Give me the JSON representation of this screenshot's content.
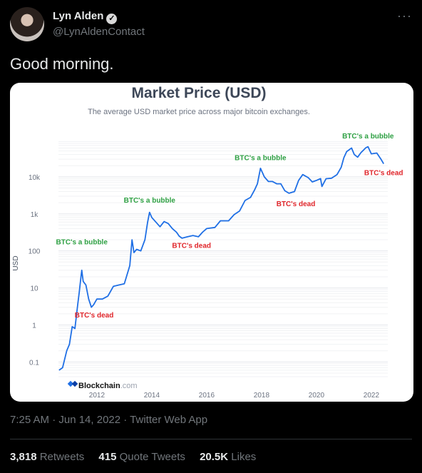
{
  "tweet": {
    "author_name": "Lyn Alden",
    "verified_glyph": "✓",
    "handle": "@LynAldenContact",
    "more_glyph": "···",
    "text": "Good morning.",
    "timestamp": "7:25 AM · Jun 14, 2022 · Twitter Web App",
    "stats": [
      {
        "count": "3,818",
        "label": "Retweets"
      },
      {
        "count": "415",
        "label": "Quote Tweets"
      },
      {
        "count": "20.5K",
        "label": "Likes"
      }
    ]
  },
  "icons": {
    "verified": "verified-badge-icon",
    "more": "more-options-icon",
    "blockchain_logo": "blockchain-logo-icon"
  },
  "colors": {
    "line": "#1f6fe5",
    "bubble": "#2ea043",
    "dead": "#e0262b",
    "background": "#000000"
  },
  "chart_data": {
    "type": "line",
    "title": "Market Price (USD)",
    "subtitle": "The average USD market price across major bitcoin exchanges.",
    "ylabel": "USD",
    "xlabel": "",
    "y_scale": "log",
    "y_ticks": [
      "0.1",
      "1",
      "10",
      "100",
      "1k",
      "10k"
    ],
    "x_ticks": [
      "2012",
      "2014",
      "2016",
      "2018",
      "2020",
      "2022"
    ],
    "ylim": [
      0.04,
      100000
    ],
    "xlim": [
      2010.6,
      2022.6
    ],
    "watermark_brand": "Blockchain",
    "watermark_suffix": ".com",
    "grid": true,
    "series": [
      {
        "values": [
          [
            2010.62,
            0.06
          ],
          [
            2010.75,
            0.07
          ],
          [
            2010.9,
            0.2
          ],
          [
            2011.0,
            0.3
          ],
          [
            2011.1,
            0.9
          ],
          [
            2011.2,
            0.8
          ],
          [
            2011.3,
            3.5
          ],
          [
            2011.36,
            8
          ],
          [
            2011.42,
            20
          ],
          [
            2011.45,
            30
          ],
          [
            2011.5,
            15
          ],
          [
            2011.6,
            12
          ],
          [
            2011.7,
            5
          ],
          [
            2011.8,
            3
          ],
          [
            2011.88,
            3.5
          ],
          [
            2012.0,
            5
          ],
          [
            2012.2,
            5
          ],
          [
            2012.4,
            6
          ],
          [
            2012.6,
            11
          ],
          [
            2012.8,
            12
          ],
          [
            2013.0,
            13
          ],
          [
            2013.2,
            40
          ],
          [
            2013.28,
            200
          ],
          [
            2013.35,
            90
          ],
          [
            2013.45,
            110
          ],
          [
            2013.6,
            100
          ],
          [
            2013.75,
            200
          ],
          [
            2013.85,
            600
          ],
          [
            2013.92,
            1100
          ],
          [
            2014.0,
            800
          ],
          [
            2014.15,
            600
          ],
          [
            2014.3,
            450
          ],
          [
            2014.45,
            620
          ],
          [
            2014.6,
            550
          ],
          [
            2014.75,
            400
          ],
          [
            2014.9,
            320
          ],
          [
            2015.0,
            250
          ],
          [
            2015.1,
            220
          ],
          [
            2015.3,
            240
          ],
          [
            2015.5,
            260
          ],
          [
            2015.7,
            240
          ],
          [
            2015.85,
            320
          ],
          [
            2016.0,
            400
          ],
          [
            2016.3,
            430
          ],
          [
            2016.5,
            650
          ],
          [
            2016.8,
            650
          ],
          [
            2017.0,
            950
          ],
          [
            2017.2,
            1200
          ],
          [
            2017.4,
            2300
          ],
          [
            2017.6,
            2800
          ],
          [
            2017.75,
            4500
          ],
          [
            2017.85,
            6500
          ],
          [
            2017.96,
            17000
          ],
          [
            2018.1,
            10000
          ],
          [
            2018.25,
            7500
          ],
          [
            2018.4,
            7500
          ],
          [
            2018.55,
            6500
          ],
          [
            2018.7,
            6500
          ],
          [
            2018.85,
            4200
          ],
          [
            2019.0,
            3600
          ],
          [
            2019.2,
            4000
          ],
          [
            2019.35,
            8000
          ],
          [
            2019.5,
            11500
          ],
          [
            2019.7,
            9500
          ],
          [
            2019.85,
            7300
          ],
          [
            2020.0,
            8000
          ],
          [
            2020.15,
            9000
          ],
          [
            2020.2,
            5500
          ],
          [
            2020.35,
            8900
          ],
          [
            2020.55,
            9200
          ],
          [
            2020.75,
            11500
          ],
          [
            2020.9,
            18000
          ],
          [
            2021.0,
            33000
          ],
          [
            2021.1,
            48000
          ],
          [
            2021.28,
            60000
          ],
          [
            2021.38,
            40000
          ],
          [
            2021.5,
            34000
          ],
          [
            2021.62,
            45000
          ],
          [
            2021.8,
            61000
          ],
          [
            2021.88,
            65000
          ],
          [
            2022.0,
            42000
          ],
          [
            2022.2,
            44000
          ],
          [
            2022.35,
            30000
          ],
          [
            2022.45,
            22500
          ]
        ]
      }
    ],
    "annotations": [
      {
        "text": "BTC's a bubble",
        "type": "bubble",
        "x": 2011.45,
        "y": 150
      },
      {
        "text": "BTC's dead",
        "type": "dead",
        "x": 2011.9,
        "y": 1.6
      },
      {
        "text": "BTC's a bubble",
        "type": "bubble",
        "x": 2013.92,
        "y": 2000
      },
      {
        "text": "BTC's dead",
        "type": "dead",
        "x": 2015.45,
        "y": 120
      },
      {
        "text": "BTC's a bubble",
        "type": "bubble",
        "x": 2017.96,
        "y": 28000
      },
      {
        "text": "BTC's dead",
        "type": "dead",
        "x": 2019.25,
        "y": 1600
      },
      {
        "text": "BTC's a bubble",
        "type": "bubble",
        "x": 2021.88,
        "y": 110000
      },
      {
        "text": "BTC's dead",
        "type": "dead",
        "x": 2022.45,
        "y": 11000
      }
    ]
  }
}
